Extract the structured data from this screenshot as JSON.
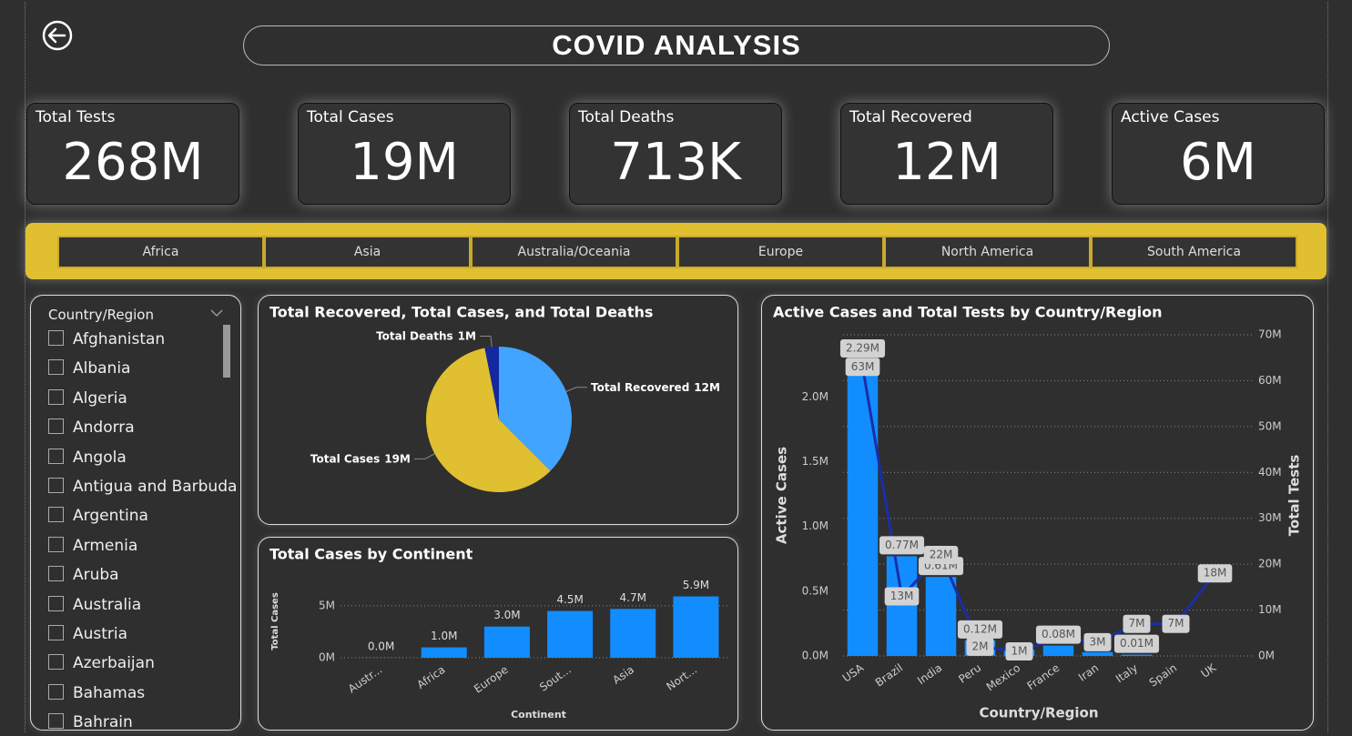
{
  "header": {
    "title": "COVID ANALYSIS"
  },
  "cards": [
    {
      "label": "Total Tests",
      "value": "268M"
    },
    {
      "label": "Total Cases",
      "value": "19M"
    },
    {
      "label": "Total Deaths",
      "value": "713K"
    },
    {
      "label": "Total Recovered",
      "value": "12M"
    },
    {
      "label": "Active Cases",
      "value": "6M"
    }
  ],
  "continent_filter": [
    "Africa",
    "Asia",
    "Australia/Oceania",
    "Europe",
    "North America",
    "South America"
  ],
  "slicer": {
    "title": "Country/Region",
    "items": [
      "Afghanistan",
      "Albania",
      "Algeria",
      "Andorra",
      "Angola",
      "Antigua and Barbuda",
      "Argentina",
      "Armenia",
      "Aruba",
      "Australia",
      "Austria",
      "Azerbaijan",
      "Bahamas",
      "Bahrain"
    ]
  },
  "chart_data": [
    {
      "type": "pie",
      "title": "Total Recovered, Total Cases, and Total Deaths",
      "categories": [
        "Total Recovered",
        "Total Cases",
        "Total Deaths"
      ],
      "values": [
        12,
        19,
        1
      ],
      "value_labels": [
        "12M",
        "19M",
        "1M"
      ],
      "colors": [
        "#41a4ff",
        "#e0c030",
        "#1428a0"
      ]
    },
    {
      "type": "bar",
      "title": "Total Cases by Continent",
      "categories": [
        "Austr...",
        "Africa",
        "Europe",
        "Sout...",
        "Asia",
        "Nort..."
      ],
      "values": [
        0.02,
        1.0,
        3.0,
        4.5,
        4.7,
        5.9
      ],
      "value_labels": [
        "0.0M",
        "1.0M",
        "3.0M",
        "4.5M",
        "4.7M",
        "5.9M"
      ],
      "color": "#118dff",
      "xlabel": "Continent",
      "ylabel": "Total Cases",
      "ylim": [
        0,
        7
      ],
      "yticks": [
        {
          "value": 0,
          "label": "0M"
        },
        {
          "value": 5,
          "label": "5M"
        }
      ],
      "grid": true,
      "grid_axis": "y",
      "data_label_style": "plain"
    },
    {
      "type": "bar",
      "title": "Active Cases and Total Tests by Country/Region",
      "categories": [
        "USA",
        "Brazil",
        "India",
        "Peru",
        "Mexico",
        "France",
        "Iran",
        "Italy",
        "Spain",
        "UK"
      ],
      "series": [
        {
          "name": "Active Cases",
          "color": "#118dff",
          "values": [
            2.29,
            0.77,
            0.61,
            0.12,
            0.05,
            0.08,
            0.03,
            0.01,
            null,
            null
          ],
          "value_labels": [
            "2.29M",
            "0.77M",
            "0.61M",
            "0.12M",
            null,
            "0.08M",
            null,
            "0.01M",
            null,
            null
          ]
        },
        {
          "name": "Total Tests",
          "color": "#1a2ea8",
          "type": "line",
          "axis": "y2",
          "values": [
            63,
            13,
            22,
            2,
            1,
            4,
            3,
            7,
            7,
            18
          ],
          "value_labels": [
            "63M",
            "13M",
            "22M",
            "2M",
            "1M",
            null,
            "3M",
            "7M",
            "7M",
            "18M"
          ]
        }
      ],
      "xlabel": "Country/Region",
      "ylim": [
        0,
        2.48
      ],
      "yticks": [
        {
          "value": 0,
          "label": "0.0M"
        },
        {
          "value": 0.5,
          "label": "0.5M"
        },
        {
          "value": 1,
          "label": "1.0M"
        },
        {
          "value": 1.5,
          "label": "1.5M"
        },
        {
          "value": 2,
          "label": "2.0M"
        }
      ],
      "y2lim": [
        0,
        70
      ],
      "y2ticks": [
        {
          "value": 0,
          "label": "0M"
        },
        {
          "value": 10,
          "label": "10M"
        },
        {
          "value": 20,
          "label": "20M"
        },
        {
          "value": 30,
          "label": "30M"
        },
        {
          "value": 40,
          "label": "40M"
        },
        {
          "value": 50,
          "label": "50M"
        },
        {
          "value": 60,
          "label": "60M"
        },
        {
          "value": 70,
          "label": "70M"
        }
      ],
      "grid": true,
      "grid_axis": "y2",
      "data_label_style": "box"
    }
  ]
}
